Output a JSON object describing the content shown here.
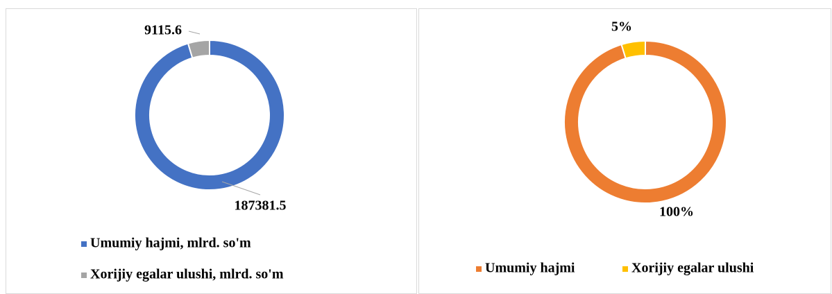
{
  "chart_data": [
    {
      "type": "donut",
      "categories": [
        "Umumiy hajmi, mlrd. so'm",
        "Xorijiy egalar ulushi, mlrd. so'm"
      ],
      "values": [
        187381.5,
        9115.6
      ],
      "colors": [
        "#4472c4",
        "#a5a5a5"
      ],
      "legend": "bottom"
    },
    {
      "type": "donut",
      "categories": [
        "Umumiy hajmi",
        "Xorijiy egalar ulushi"
      ],
      "values": [
        100,
        5
      ],
      "value_labels": [
        "100%",
        "5%"
      ],
      "colors": [
        "#ed7d31",
        "#ffc000"
      ],
      "legend": "bottom"
    }
  ]
}
